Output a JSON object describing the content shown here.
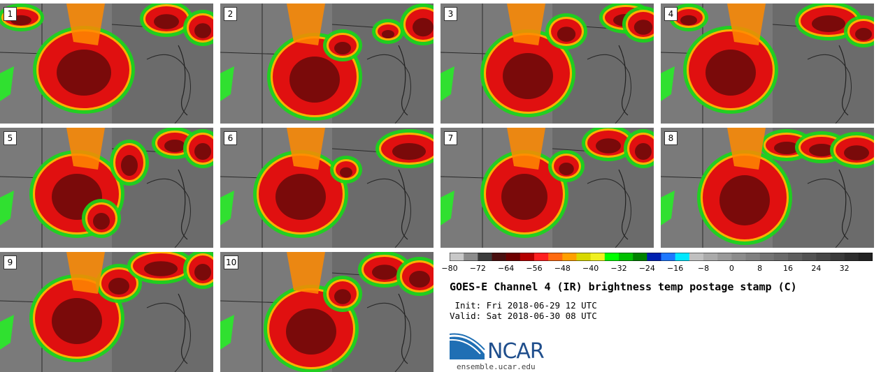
{
  "panels": [
    {
      "label": "1"
    },
    {
      "label": "2"
    },
    {
      "label": "3"
    },
    {
      "label": "4"
    },
    {
      "label": "5"
    },
    {
      "label": "6"
    },
    {
      "label": "7"
    },
    {
      "label": "8"
    },
    {
      "label": "9"
    },
    {
      "label": "10"
    }
  ],
  "colorbar": {
    "colors": [
      "#c8c8c8",
      "#8c8c8c",
      "#3c3c3c",
      "#4a1010",
      "#6e0000",
      "#b40000",
      "#ff2020",
      "#ff6a10",
      "#ffa000",
      "#d8d800",
      "#f0f020",
      "#00ff00",
      "#00c000",
      "#008200",
      "#0020b0",
      "#1e78ff",
      "#00e8ff",
      "#c0c0c0",
      "#aaaaaa",
      "#9a9a9a",
      "#8c8c8c",
      "#808080",
      "#747474",
      "#6a6a6a",
      "#5e5e5e",
      "#525252",
      "#464646",
      "#3a3a3a",
      "#2e2e2e",
      "#222222"
    ],
    "ticks": [
      "−80",
      "−72",
      "−64",
      "−56",
      "−48",
      "−40",
      "−32",
      "−24",
      "−16",
      "−8",
      "0",
      "8",
      "16",
      "24",
      "32"
    ]
  },
  "title": "GOES-E Channel 4 (IR) brightness temp postage stamp (C)",
  "init": " Init: Fri 2018-06-29 12 UTC",
  "valid": "Valid: Sat 2018-06-30 08 UTC",
  "logo": {
    "name": "NCAR",
    "url": "ensemble.ucar.edu"
  }
}
